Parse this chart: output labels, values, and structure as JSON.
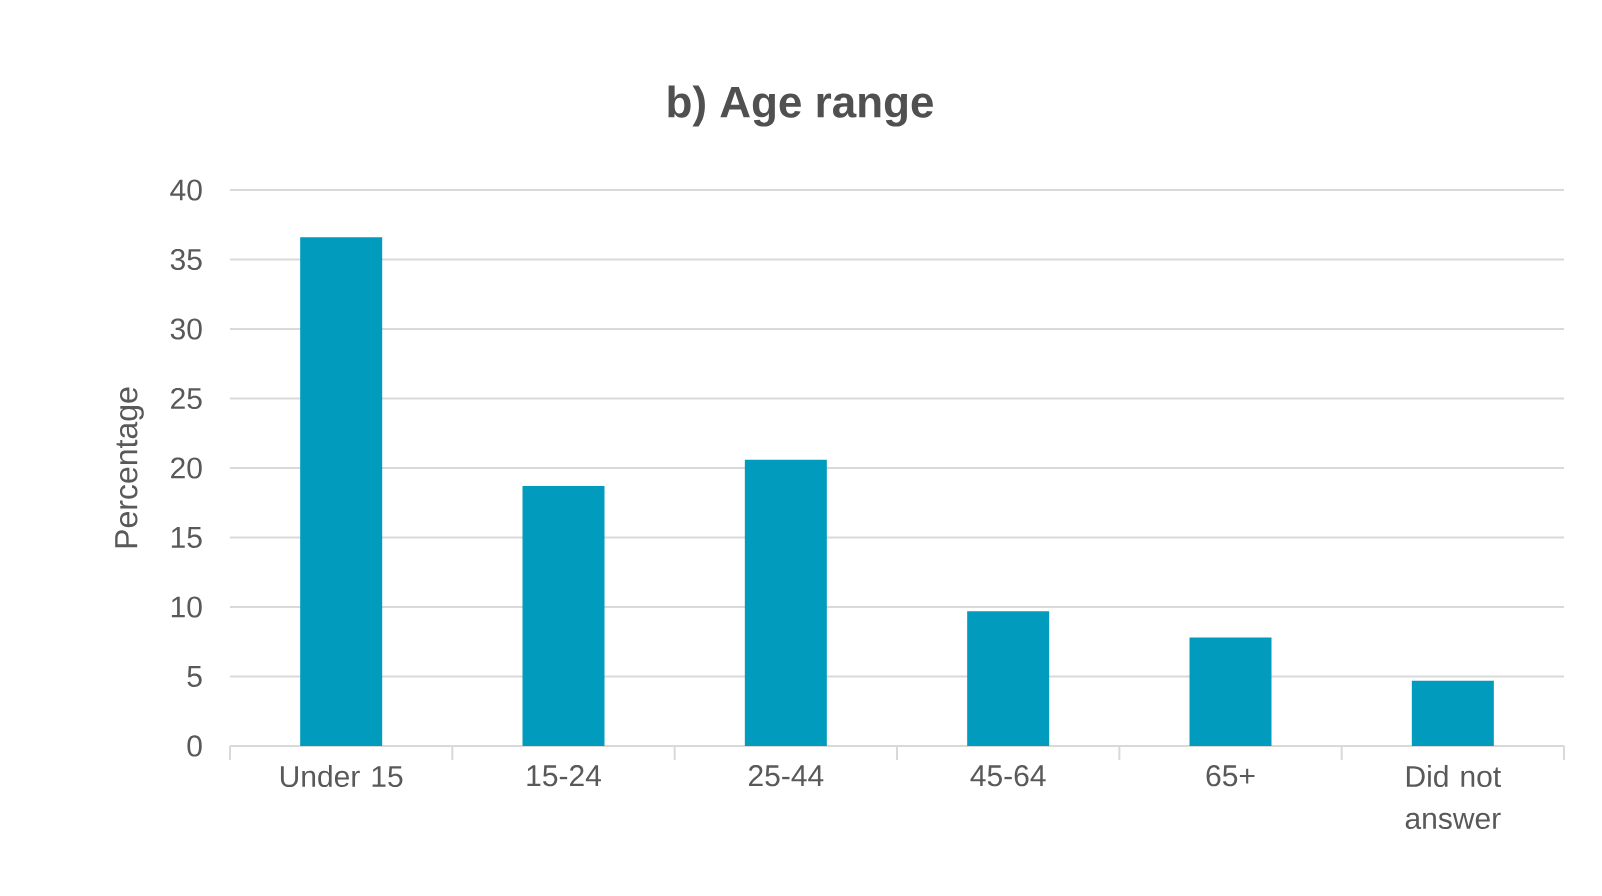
{
  "chart_data": {
    "type": "bar",
    "title": "b) Age range",
    "ylabel": "Percentage",
    "categories": [
      "Under 15",
      "15-24",
      "25-44",
      "45-64",
      "65+",
      "Did not answer"
    ],
    "values": [
      36.6,
      18.7,
      20.6,
      9.7,
      7.8,
      4.7
    ],
    "color": "#009bbd",
    "ylim": [
      0,
      40
    ],
    "yticks": [
      0,
      5,
      10,
      15,
      20,
      25,
      30,
      35,
      40
    ],
    "grid": "y"
  }
}
